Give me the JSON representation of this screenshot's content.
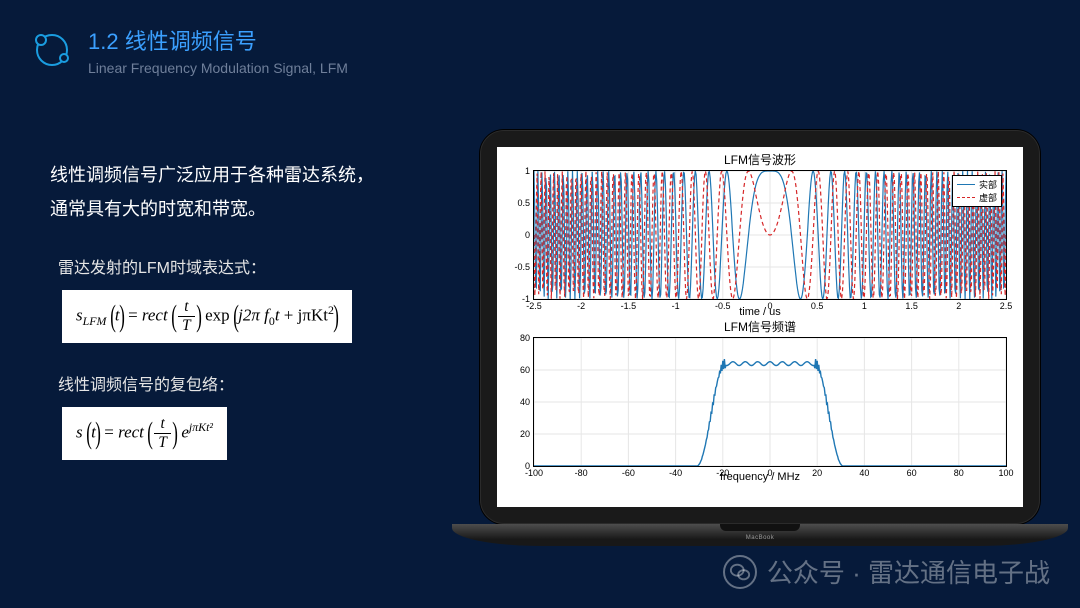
{
  "header": {
    "title": "1.2 线性调频信号",
    "subtitle": "Linear Frequency Modulation Signal, LFM",
    "icon_stroke": "#1a9de0"
  },
  "left": {
    "intro_l1": "线性调频信号广泛应用于各种雷达系统，",
    "intro_l2": "通常具有大的时宽和带宽。",
    "formula1_label": "雷达发射的LFM时域表达式：",
    "formula2_label": "线性调频信号的复包络："
  },
  "formula1": {
    "lhs": "s",
    "lhs_sub": "LFM",
    "var": "t",
    "rect": "rect",
    "frac_num": "t",
    "frac_den": "T",
    "exp": "exp",
    "arg1": "j2π f",
    "arg1_sub": "0",
    "arg1_tail": "t",
    "arg2": " + jπKt",
    "arg2_sup": "2"
  },
  "formula2": {
    "lhs": "s",
    "var": "t",
    "rect": "rect",
    "frac_num": "t",
    "frac_den": "T",
    "e": "e",
    "exp_sup": "jπKt²"
  },
  "chart1": {
    "title": "LFM信号波形",
    "xlim": [
      -2.5,
      2.5
    ],
    "ylim": [
      -1,
      1
    ],
    "yticks": [
      -1,
      -0.5,
      0,
      0.5,
      1
    ],
    "xticks": [
      -2.5,
      -2,
      -1.5,
      -1,
      -0.5,
      0,
      0.5,
      1,
      1.5,
      2,
      2.5
    ],
    "xlabel": "time / us",
    "series": [
      {
        "name": "实部",
        "color": "#1f77b4",
        "dash": "none"
      },
      {
        "name": "虚部",
        "color": "#d62728",
        "dash": "4 3"
      }
    ],
    "chirp_cycles": 60,
    "samples": 600,
    "bg": "#ffffff",
    "grid": "#e6e6e6"
  },
  "chart2": {
    "title": "LFM信号频谱",
    "xlim": [
      -100,
      100
    ],
    "ylim": [
      0,
      80
    ],
    "yticks": [
      0,
      20,
      40,
      60,
      80
    ],
    "xticks": [
      -100,
      -80,
      -60,
      -40,
      -20,
      0,
      20,
      40,
      60,
      80,
      100
    ],
    "xlabel": "frequency / MHz",
    "color": "#1f77b4",
    "plateau_level": 64,
    "ripple_amp": 3,
    "ripple_freq": 10,
    "band_half_width": 25,
    "edge_width": 6,
    "bg": "#ffffff",
    "grid": "#e6e6e6"
  },
  "laptop": {
    "brand": "MacBook"
  },
  "watermark": {
    "prefix": "公众号 · ",
    "name": "雷达通信电子战"
  }
}
